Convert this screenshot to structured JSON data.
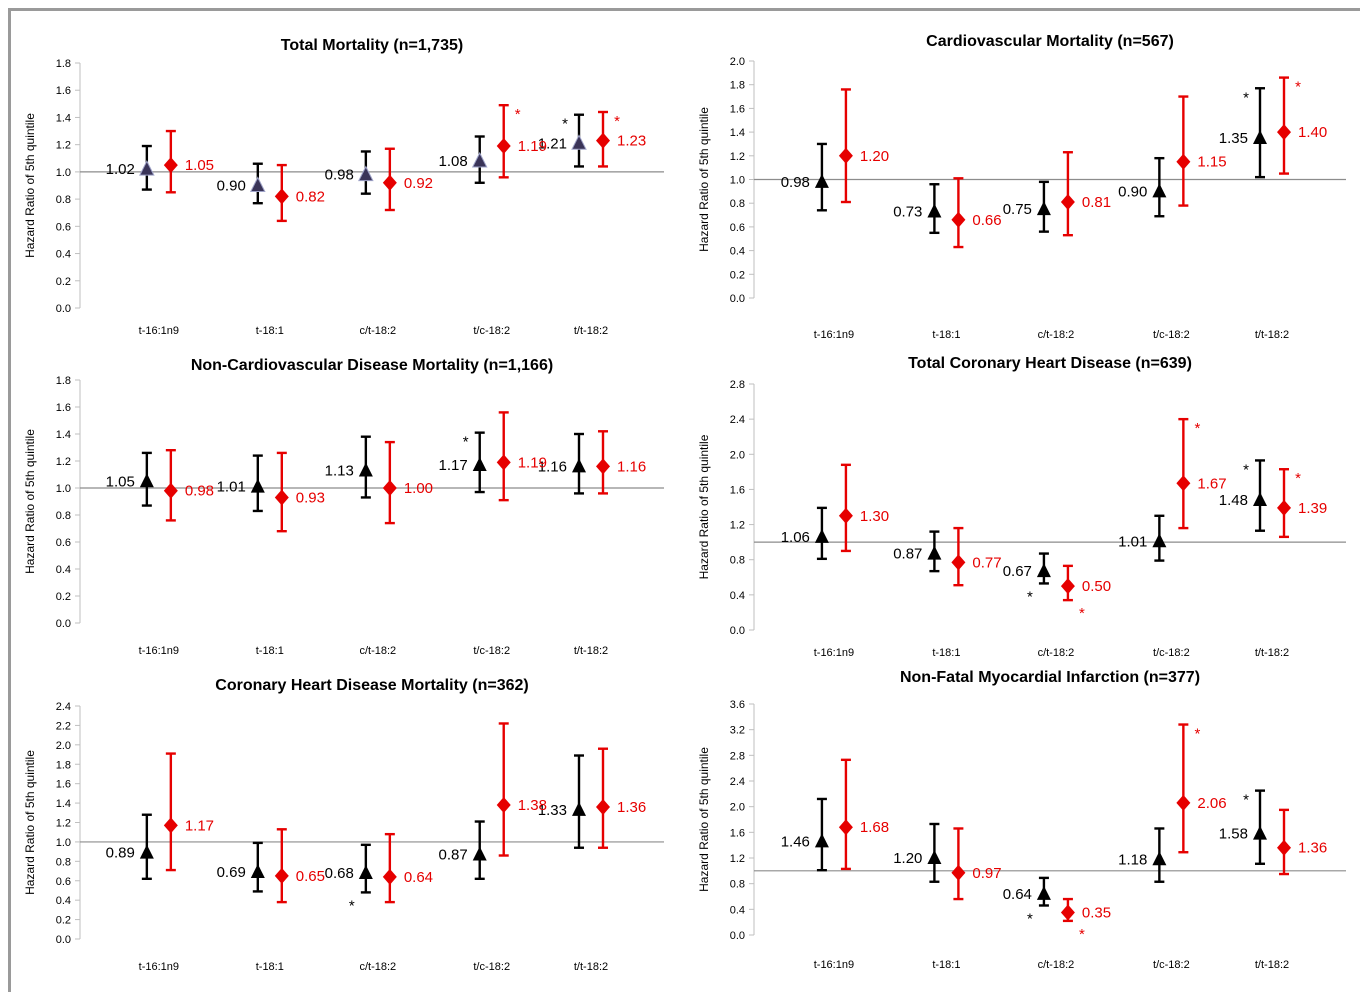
{
  "colors": {
    "black_series": "#000000",
    "red_series": "#e60000",
    "reference_line": "#8c8c8c",
    "triangle_fill_total": "#3a3458"
  },
  "chart_data": [
    {
      "type": "scatter",
      "title": "Total Mortality (n=1,735)",
      "ylabel": "Hazard Ratio of 5th quintile",
      "categories": [
        "t-16:1n9",
        "t-18:1",
        "c/t-18:2",
        "t/c-18:2",
        "t/t-18:2"
      ],
      "ylim": [
        0,
        1.8
      ],
      "ystep": 0.2,
      "ydecimals": 1,
      "reference": 1.0,
      "series": [
        {
          "marker": "triangle",
          "color": "#000000",
          "values": [
            1.02,
            0.9,
            0.98,
            1.08,
            1.21
          ],
          "lower": [
            0.87,
            0.77,
            0.84,
            0.92,
            1.04
          ],
          "upper": [
            1.19,
            1.06,
            1.15,
            1.26,
            1.42
          ],
          "labels": [
            "1.02",
            "0.90",
            "0.98",
            "1.08",
            "1.21"
          ],
          "stars": [
            false,
            false,
            false,
            false,
            true
          ]
        },
        {
          "marker": "diamond",
          "color": "#e60000",
          "values": [
            1.05,
            0.82,
            0.92,
            1.19,
            1.23
          ],
          "lower": [
            0.85,
            0.64,
            0.72,
            0.96,
            1.04
          ],
          "upper": [
            1.3,
            1.05,
            1.17,
            1.49,
            1.44
          ],
          "labels": [
            "1.05",
            "0.82",
            "0.92",
            "1.19",
            "1.23"
          ],
          "stars": [
            false,
            false,
            false,
            true,
            true
          ]
        }
      ]
    },
    {
      "type": "scatter",
      "title": "Cardiovascular Mortality (n=567)",
      "ylabel": "Hazard Ratio of 5th quintile",
      "categories": [
        "t-16:1n9",
        "t-18:1",
        "c/t-18:2",
        "t/c-18:2",
        "t/t-18:2"
      ],
      "ylim": [
        0,
        2.0
      ],
      "ystep": 0.2,
      "ydecimals": 1,
      "reference": 1.0,
      "series": [
        {
          "marker": "triangle",
          "color": "#000000",
          "values": [
            0.98,
            0.73,
            0.75,
            0.9,
            1.35
          ],
          "lower": [
            0.74,
            0.55,
            0.56,
            0.69,
            1.02
          ],
          "upper": [
            1.3,
            0.96,
            0.98,
            1.18,
            1.77
          ],
          "labels": [
            "0.98",
            "0.73",
            "0.75",
            "0.90",
            "1.35"
          ],
          "stars": [
            false,
            false,
            false,
            false,
            true
          ]
        },
        {
          "marker": "diamond",
          "color": "#e60000",
          "values": [
            1.2,
            0.66,
            0.81,
            1.15,
            1.4
          ],
          "lower": [
            0.81,
            0.43,
            0.53,
            0.78,
            1.05
          ],
          "upper": [
            1.76,
            1.01,
            1.23,
            1.7,
            1.86
          ],
          "labels": [
            "1.20",
            "0.66",
            "0.81",
            "1.15",
            "1.40"
          ],
          "stars": [
            false,
            false,
            false,
            false,
            true
          ]
        }
      ]
    },
    {
      "type": "scatter",
      "title": "Non-Cardiovascular Disease Mortality (n=1,166)",
      "ylabel": "Hazard Ratio of 5th quintile",
      "categories": [
        "t-16:1n9",
        "t-18:1",
        "c/t-18:2",
        "t/c-18:2",
        "t/t-18:2"
      ],
      "ylim": [
        0,
        1.8
      ],
      "ystep": 0.2,
      "ydecimals": 1,
      "reference": 1.0,
      "series": [
        {
          "marker": "triangle",
          "color": "#000000",
          "values": [
            1.05,
            1.01,
            1.13,
            1.17,
            1.16
          ],
          "lower": [
            0.87,
            0.83,
            0.93,
            0.97,
            0.96
          ],
          "upper": [
            1.26,
            1.24,
            1.38,
            1.41,
            1.4
          ],
          "labels": [
            "1.05",
            "1.01",
            "1.13",
            "1.17",
            "1.16"
          ],
          "stars": [
            false,
            false,
            false,
            true,
            false
          ]
        },
        {
          "marker": "diamond",
          "color": "#e60000",
          "values": [
            0.98,
            0.93,
            1.0,
            1.19,
            1.16
          ],
          "lower": [
            0.76,
            0.68,
            0.74,
            0.91,
            0.96
          ],
          "upper": [
            1.28,
            1.26,
            1.34,
            1.56,
            1.42
          ],
          "labels": [
            "0.98",
            "0.93",
            "1.00",
            "1.19",
            "1.16"
          ],
          "stars": [
            false,
            false,
            false,
            false,
            false
          ]
        }
      ]
    },
    {
      "type": "scatter",
      "title": "Total Coronary Heart Disease (n=639)",
      "ylabel": "Hazard Ratio of 5th quintile",
      "categories": [
        "t-16:1n9",
        "t-18:1",
        "c/t-18:2",
        "t/c-18:2",
        "t/t-18:2"
      ],
      "ylim": [
        0,
        2.8
      ],
      "ystep": 0.4,
      "ydecimals": 1,
      "reference": 1.0,
      "series": [
        {
          "marker": "triangle",
          "color": "#000000",
          "values": [
            1.06,
            0.87,
            0.67,
            1.01,
            1.48
          ],
          "lower": [
            0.81,
            0.67,
            0.53,
            0.79,
            1.13
          ],
          "upper": [
            1.39,
            1.12,
            0.87,
            1.3,
            1.93
          ],
          "labels": [
            "1.06",
            "0.87",
            "0.67",
            "1.01",
            "1.48"
          ],
          "stars": [
            false,
            false,
            true,
            false,
            true
          ]
        },
        {
          "marker": "diamond",
          "color": "#e60000",
          "values": [
            1.3,
            0.77,
            0.5,
            1.67,
            1.39
          ],
          "lower": [
            0.9,
            0.51,
            0.34,
            1.16,
            1.06
          ],
          "upper": [
            1.88,
            1.16,
            0.73,
            2.4,
            1.83
          ],
          "labels": [
            "1.30",
            "0.77",
            "0.50",
            "1.67",
            "1.39"
          ],
          "stars": [
            false,
            false,
            true,
            true,
            true
          ]
        }
      ]
    },
    {
      "type": "scatter",
      "title": "Coronary Heart Disease Mortality (n=362)",
      "ylabel": "Hazard Ratio of 5th quintile",
      "categories": [
        "t-16:1n9",
        "t-18:1",
        "c/t-18:2",
        "t/c-18:2",
        "t/t-18:2"
      ],
      "ylim": [
        0,
        2.4
      ],
      "ystep": 0.2,
      "ydecimals": 1,
      "reference": 1.0,
      "series": [
        {
          "marker": "triangle",
          "color": "#000000",
          "values": [
            0.89,
            0.69,
            0.68,
            0.87,
            1.33
          ],
          "lower": [
            0.62,
            0.49,
            0.48,
            0.62,
            0.94
          ],
          "upper": [
            1.28,
            0.99,
            0.97,
            1.21,
            1.89
          ],
          "labels": [
            "0.89",
            "0.69",
            "0.68",
            "0.87",
            "1.33"
          ],
          "stars": [
            false,
            false,
            true,
            false,
            false
          ]
        },
        {
          "marker": "diamond",
          "color": "#e60000",
          "values": [
            1.17,
            0.65,
            0.64,
            1.38,
            1.36
          ],
          "lower": [
            0.71,
            0.38,
            0.38,
            0.86,
            0.94
          ],
          "upper": [
            1.91,
            1.13,
            1.08,
            2.22,
            1.96
          ],
          "labels": [
            "1.17",
            "0.65",
            "0.64",
            "1.38",
            "1.36"
          ],
          "stars": [
            false,
            false,
            false,
            false,
            false
          ]
        }
      ]
    },
    {
      "type": "scatter",
      "title": "Non-Fatal Myocardial Infarction (n=377)",
      "ylabel": "Hazard Ratio of 5th quintile",
      "categories": [
        "t-16:1n9",
        "t-18:1",
        "c/t-18:2",
        "t/c-18:2",
        "t/t-18:2"
      ],
      "ylim": [
        0,
        3.6
      ],
      "ystep": 0.4,
      "ydecimals": 1,
      "reference": 1.0,
      "series": [
        {
          "marker": "triangle",
          "color": "#000000",
          "values": [
            1.46,
            1.2,
            0.64,
            1.18,
            1.58
          ],
          "lower": [
            1.01,
            0.83,
            0.46,
            0.83,
            1.11
          ],
          "upper": [
            2.12,
            1.73,
            0.89,
            1.66,
            2.25
          ],
          "labels": [
            "1.46",
            "1.20",
            "0.64",
            "1.18",
            "1.58"
          ],
          "stars": [
            false,
            false,
            true,
            false,
            true
          ]
        },
        {
          "marker": "diamond",
          "color": "#e60000",
          "values": [
            1.68,
            0.97,
            0.35,
            2.06,
            1.36
          ],
          "lower": [
            1.03,
            0.56,
            0.22,
            1.29,
            0.95
          ],
          "upper": [
            2.73,
            1.66,
            0.56,
            3.28,
            1.95
          ],
          "labels": [
            "1.68",
            "0.97",
            "0.35",
            "2.06",
            "1.36"
          ],
          "stars": [
            false,
            false,
            true,
            true,
            false
          ]
        }
      ]
    }
  ]
}
